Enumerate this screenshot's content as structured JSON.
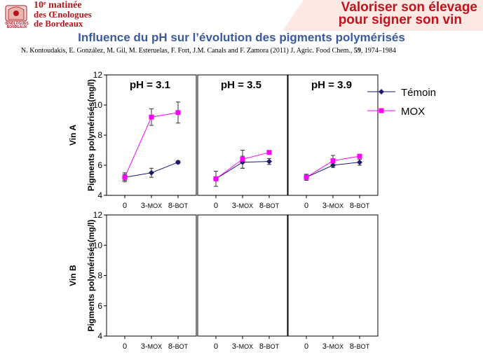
{
  "header": {
    "event_line1": "10ᵉ matinée",
    "event_line2": "des Œnologues",
    "event_line3": "de Bordeaux",
    "logo_text": "ŒNOLOGUES BORDEAUX",
    "slogan_line1": "Valoriser son élevage",
    "slogan_line2": "pour signer son vin",
    "accent_color": "#c0141c"
  },
  "slide": {
    "title": "Influence du pH sur l’évolution des pigments polymérisés",
    "citation_authors": "N. Kontoudakis, E. González, M. Gil, M. Esteruelas, F. Fort, J.M. Canals and F. Zamora (2011) J. Agric. Food Chem., ",
    "citation_volume": "59",
    "citation_pages": ", 1974–1984"
  },
  "chart_data": {
    "type": "line",
    "ylabel": "Pigments polymérisés(mg/l)",
    "ylim": [
      4,
      12
    ],
    "yticks": [
      4,
      6,
      8,
      10,
      12
    ],
    "categories": [
      "0",
      "3-MOX",
      "8-BOT"
    ],
    "category_parts": [
      [
        "0",
        ""
      ],
      [
        "3-",
        "MOX"
      ],
      [
        "8-",
        "BOT"
      ]
    ],
    "panel_titles": [
      "pH = 3.1",
      "pH = 3.5",
      "pH = 3.9"
    ],
    "row_labels": [
      "Vin A",
      "Vin B"
    ],
    "legend": [
      {
        "name": "Témoin",
        "color": "#1a1a6e",
        "marker": "diamond"
      },
      {
        "name": "MOX",
        "color": "#ff00ff",
        "marker": "square"
      }
    ],
    "legend_position": "top-right",
    "grid": false,
    "panels": [
      {
        "row": "Vin A",
        "ph": "pH = 3.1",
        "series": [
          {
            "name": "Témoin",
            "values": [
              5.2,
              5.5,
              6.2
            ],
            "errors": [
              0.2,
              0.3,
              0.1
            ]
          },
          {
            "name": "MOX",
            "values": [
              5.2,
              9.2,
              9.5
            ],
            "errors": [
              0.3,
              0.55,
              0.7
            ]
          }
        ]
      },
      {
        "row": "Vin A",
        "ph": "pH = 3.5",
        "series": [
          {
            "name": "Témoin",
            "values": [
              5.1,
              6.2,
              6.25
            ],
            "errors": [
              0.5,
              0.4,
              0.2
            ]
          },
          {
            "name": "MOX",
            "values": [
              5.1,
              6.4,
              6.85
            ],
            "errors": [
              0.0,
              0.6,
              0.0
            ]
          }
        ]
      },
      {
        "row": "Vin A",
        "ph": "pH = 3.9",
        "series": [
          {
            "name": "Témoin",
            "values": [
              5.2,
              6.0,
              6.2
            ],
            "errors": [
              0.2,
              0.15,
              0.2
            ]
          },
          {
            "name": "MOX",
            "values": [
              5.2,
              6.3,
              6.6
            ],
            "errors": [
              0.2,
              0.35,
              0.1
            ]
          }
        ]
      },
      {
        "row": "Vin B",
        "ph": "pH = 3.1",
        "series": []
      },
      {
        "row": "Vin B",
        "ph": "pH = 3.5",
        "series": []
      },
      {
        "row": "Vin B",
        "ph": "pH = 3.9",
        "series": []
      }
    ]
  }
}
